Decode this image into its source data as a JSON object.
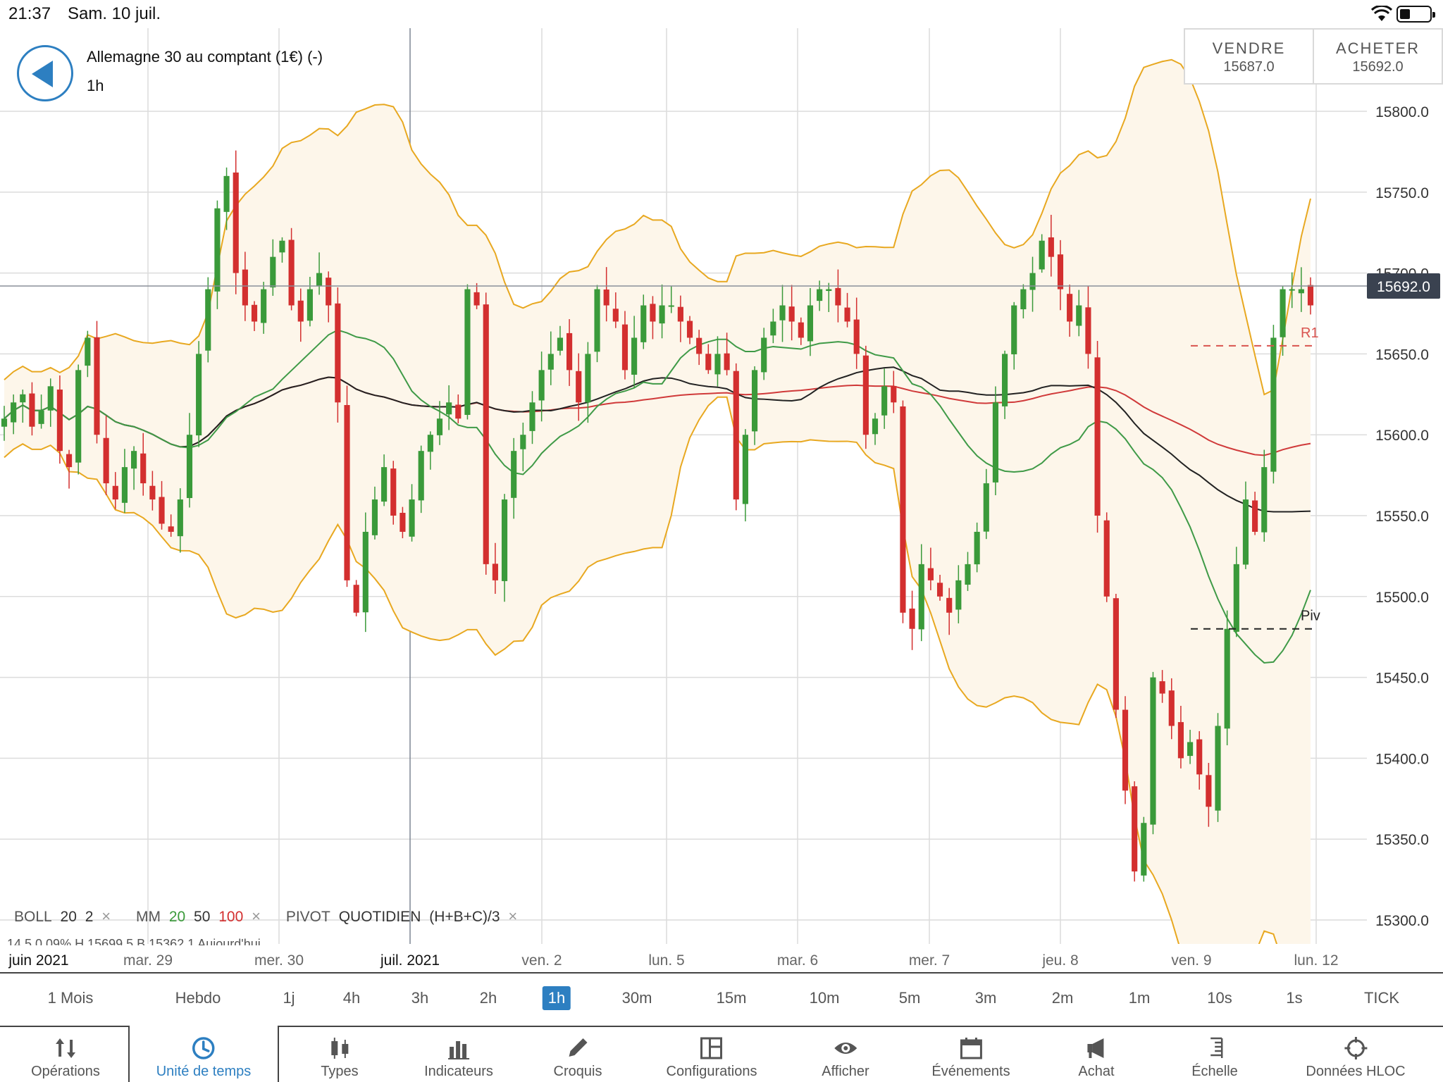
{
  "status": {
    "time": "21:37",
    "date": "Sam. 10 juil."
  },
  "instrument": {
    "title": "Allemagne 30 au comptant (1€) (-)",
    "period": "1h"
  },
  "trade": {
    "sell_label": "VENDRE",
    "sell_price": "15687.0",
    "buy_label": "ACHETER",
    "buy_price": "15692.0"
  },
  "legend": {
    "boll": "BOLL",
    "boll_period": "20",
    "boll_dev": "2",
    "mm": "MM",
    "mm_a": "20",
    "mm_b": "50",
    "mm_c": "100",
    "pivot": "PIVOT",
    "pivot_type": "QUOTIDIEN",
    "pivot_formula": "(H+B+C)/3",
    "close_glyph": "×"
  },
  "partial_line": "14.5     0.09%   H 15699.5   B 15362.1   Aujourd'hui",
  "timeframes": [
    "1 Mois",
    "Hebdo",
    "1j",
    "4h",
    "3h",
    "2h",
    "1h",
    "30m",
    "15m",
    "10m",
    "5m",
    "3m",
    "2m",
    "1m",
    "10s",
    "1s",
    "TICK"
  ],
  "active_timeframe": "1h",
  "toolbar": [
    {
      "label": "Opérations",
      "icon": "up-down-arrows-icon"
    },
    {
      "label": "Unité de temps",
      "icon": "clock-icon"
    },
    {
      "label": "Types",
      "icon": "candlestick-icon"
    },
    {
      "label": "Indicateurs",
      "icon": "bar-chart-icon"
    },
    {
      "label": "Croquis",
      "icon": "pencil-icon"
    },
    {
      "label": "Configurations",
      "icon": "layout-icon"
    },
    {
      "label": "Afficher",
      "icon": "eye-icon"
    },
    {
      "label": "Événements",
      "icon": "calendar-icon"
    },
    {
      "label": "Achat",
      "icon": "megaphone-icon"
    },
    {
      "label": "Échelle",
      "icon": "scale-icon"
    },
    {
      "label": "Données HLOC",
      "icon": "crosshair-icon"
    }
  ],
  "active_tool": "Unité de temps",
  "colors": {
    "accent": "#2d7fc1",
    "up": "#3a9a3a",
    "down": "#d32f2f",
    "boll": "#e8a820",
    "ma20": "#3f9a47",
    "ma50": "#222222",
    "ma100": "#d03a3a"
  },
  "chart_data": {
    "type": "candlestick",
    "ylim": [
      15280,
      15830
    ],
    "y_ticks": [
      15300,
      15350,
      15400,
      15450,
      15500,
      15550,
      15600,
      15650,
      15700,
      15750,
      15800
    ],
    "y_tick_labels": [
      "15300.0",
      "15350.0",
      "15400.0",
      "15450.0",
      "15500.0",
      "15550.0",
      "15600.0",
      "15650.0",
      "15700.0",
      "15750.0",
      "15800.0"
    ],
    "x_labels": [
      "juin 2021",
      "mar. 29",
      "mer. 30",
      "juil. 2021",
      "ven. 2",
      "lun. 5",
      "mar. 6",
      "mer. 7",
      "jeu. 8",
      "ven. 9",
      "lun. 12"
    ],
    "current_price": 15692.0,
    "current_price_label": "15692.0",
    "pivot_levels": [
      {
        "label": "R1",
        "value": 15655
      },
      {
        "label": "Piv",
        "value": 15480
      }
    ],
    "close_path": [
      15610,
      15620,
      15625,
      15605,
      15615,
      15630,
      15590,
      15580,
      15640,
      15660,
      15600,
      15570,
      15560,
      15580,
      15590,
      15570,
      15560,
      15545,
      15540,
      15560,
      15600,
      15650,
      15690,
      15740,
      15760,
      15700,
      15680,
      15670,
      15690,
      15710,
      15720,
      15680,
      15670,
      15690,
      15700,
      15680,
      15620,
      15510,
      15490,
      15540,
      15560,
      15580,
      15550,
      15540,
      15560,
      15590,
      15600,
      15610,
      15620,
      15610,
      15690,
      15680,
      15520,
      15510,
      15560,
      15590,
      15600,
      15620,
      15640,
      15650,
      15660,
      15640,
      15620,
      15650,
      15690,
      15680,
      15670,
      15640,
      15660,
      15680,
      15670,
      15680,
      15680,
      15670,
      15660,
      15650,
      15640,
      15650,
      15640,
      15560,
      15600,
      15640,
      15660,
      15670,
      15680,
      15670,
      15660,
      15680,
      15690,
      15690,
      15680,
      15670,
      15650,
      15600,
      15610,
      15630,
      15620,
      15490,
      15480,
      15520,
      15510,
      15500,
      15490,
      15510,
      15520,
      15540,
      15570,
      15620,
      15650,
      15680,
      15690,
      15700,
      15720,
      15710,
      15690,
      15670,
      15680,
      15650,
      15550,
      15500,
      15430,
      15380,
      15330,
      15360,
      15450,
      15440,
      15420,
      15400,
      15410,
      15390,
      15370,
      15420,
      15480,
      15520,
      15560,
      15540,
      15580,
      15660,
      15690,
      15690,
      15690,
      15680
    ],
    "ma_legend": [
      "20",
      "50",
      "100"
    ]
  }
}
